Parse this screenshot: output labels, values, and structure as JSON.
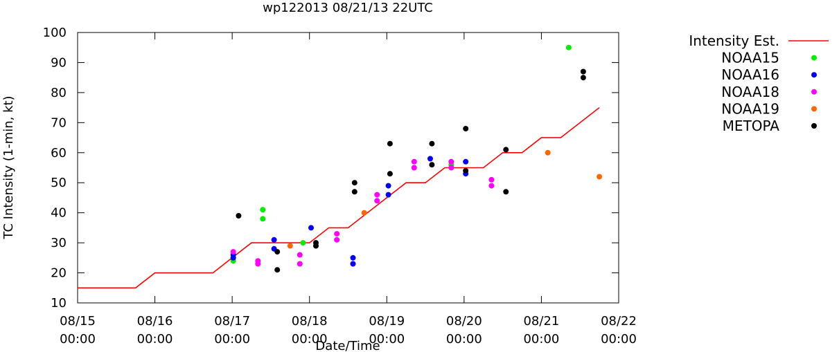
{
  "chart_data": {
    "type": "scatter",
    "title": "wp122013 08/21/13 22UTC",
    "xlabel": "Date/Time",
    "ylabel": "TC Intensity (1-min, kt)",
    "ylim": [
      10,
      100
    ],
    "xlim": [
      "2013-08-15 00:00",
      "2013-08-22 00:00"
    ],
    "x_tick_labels": [
      {
        "date": "08/15",
        "time": "00:00"
      },
      {
        "date": "08/16",
        "time": "00:00"
      },
      {
        "date": "08/17",
        "time": "00:00"
      },
      {
        "date": "08/18",
        "time": "00:00"
      },
      {
        "date": "08/19",
        "time": "00:00"
      },
      {
        "date": "08/20",
        "time": "00:00"
      },
      {
        "date": "08/21",
        "time": "00:00"
      },
      {
        "date": "08/22",
        "time": "00:00"
      }
    ],
    "y_ticks": [
      10,
      20,
      30,
      40,
      50,
      60,
      70,
      80,
      90,
      100
    ],
    "legend_position": "right",
    "grid": false,
    "series": [
      {
        "name": "Intensity Est.",
        "kind": "line",
        "color": "#ff0000",
        "points": [
          [
            "2013-08-15 00:00",
            15
          ],
          [
            "2013-08-15 18:00",
            15
          ],
          [
            "2013-08-16 00:00",
            20
          ],
          [
            "2013-08-16 18:00",
            20
          ],
          [
            "2013-08-17 00:00",
            25
          ],
          [
            "2013-08-17 06:00",
            30
          ],
          [
            "2013-08-18 00:00",
            30
          ],
          [
            "2013-08-18 06:00",
            35
          ],
          [
            "2013-08-18 12:00",
            35
          ],
          [
            "2013-08-19 00:00",
            45
          ],
          [
            "2013-08-19 06:00",
            50
          ],
          [
            "2013-08-19 12:00",
            50
          ],
          [
            "2013-08-19 18:00",
            55
          ],
          [
            "2013-08-20 06:00",
            55
          ],
          [
            "2013-08-20 12:00",
            60
          ],
          [
            "2013-08-20 18:00",
            60
          ],
          [
            "2013-08-21 00:00",
            65
          ],
          [
            "2013-08-21 06:00",
            65
          ],
          [
            "2013-08-21 18:00",
            75
          ]
        ]
      },
      {
        "name": "NOAA15",
        "kind": "points",
        "color": "#00ee00",
        "points": [
          [
            "2013-08-17 00:20",
            24
          ],
          [
            "2013-08-17 09:30",
            41
          ],
          [
            "2013-08-17 09:30",
            38
          ],
          [
            "2013-08-17 22:00",
            30
          ],
          [
            "2013-08-19 20:00",
            56
          ],
          [
            "2013-08-21 08:30",
            95
          ]
        ]
      },
      {
        "name": "NOAA16",
        "kind": "points",
        "color": "#0000ff",
        "points": [
          [
            "2013-08-17 00:20",
            26
          ],
          [
            "2013-08-17 00:20",
            25
          ],
          [
            "2013-08-17 13:00",
            31
          ],
          [
            "2013-08-17 13:00",
            28
          ],
          [
            "2013-08-18 00:30",
            35
          ],
          [
            "2013-08-18 13:30",
            25
          ],
          [
            "2013-08-18 13:30",
            23
          ],
          [
            "2013-08-19 00:30",
            49
          ],
          [
            "2013-08-19 00:30",
            46
          ],
          [
            "2013-08-19 13:30",
            58
          ],
          [
            "2013-08-20 00:30",
            57
          ],
          [
            "2013-08-20 00:30",
            53
          ]
        ]
      },
      {
        "name": "NOAA18",
        "kind": "points",
        "color": "#ff00ff",
        "points": [
          [
            "2013-08-17 00:20",
            27
          ],
          [
            "2013-08-17 08:00",
            24
          ],
          [
            "2013-08-17 08:00",
            23
          ],
          [
            "2013-08-17 21:00",
            26
          ],
          [
            "2013-08-17 21:00",
            23
          ],
          [
            "2013-08-18 08:30",
            33
          ],
          [
            "2013-08-18 08:30",
            31
          ],
          [
            "2013-08-18 21:00",
            46
          ],
          [
            "2013-08-18 21:00",
            44
          ],
          [
            "2013-08-19 08:30",
            57
          ],
          [
            "2013-08-19 08:30",
            55
          ],
          [
            "2013-08-19 20:00",
            57
          ],
          [
            "2013-08-19 20:00",
            55
          ],
          [
            "2013-08-20 08:30",
            51
          ],
          [
            "2013-08-20 08:30",
            49
          ]
        ]
      },
      {
        "name": "NOAA19",
        "kind": "points",
        "color": "#ff6600",
        "points": [
          [
            "2013-08-17 18:00",
            29
          ],
          [
            "2013-08-18 17:00",
            40
          ],
          [
            "2013-08-21 02:00",
            60
          ],
          [
            "2013-08-21 18:00",
            52
          ]
        ]
      },
      {
        "name": "METOPA",
        "kind": "points",
        "color": "#000000",
        "points": [
          [
            "2013-08-17 02:00",
            39
          ],
          [
            "2013-08-17 14:00",
            27
          ],
          [
            "2013-08-17 14:00",
            21
          ],
          [
            "2013-08-18 02:00",
            30
          ],
          [
            "2013-08-18 02:00",
            29
          ],
          [
            "2013-08-18 14:00",
            50
          ],
          [
            "2013-08-18 14:00",
            47
          ],
          [
            "2013-08-19 01:00",
            63
          ],
          [
            "2013-08-19 01:00",
            53
          ],
          [
            "2013-08-19 14:00",
            63
          ],
          [
            "2013-08-19 14:00",
            56
          ],
          [
            "2013-08-20 00:30",
            68
          ],
          [
            "2013-08-20 00:30",
            54
          ],
          [
            "2013-08-20 13:00",
            61
          ],
          [
            "2013-08-20 13:00",
            47
          ],
          [
            "2013-08-21 13:00",
            87
          ],
          [
            "2013-08-21 13:00",
            85
          ]
        ]
      }
    ]
  }
}
